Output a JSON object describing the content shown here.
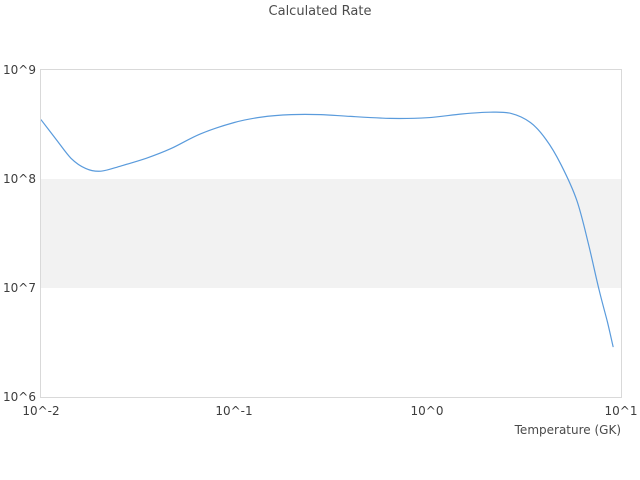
{
  "title": "Calculated Rate",
  "colors": {
    "line": "#5a9bdc",
    "band": "#f2f2f2",
    "plot_border": "#d9d9d9",
    "title_text": "#4c4c4c",
    "tick_text": "#3d3d3d"
  },
  "chart_data": {
    "type": "line",
    "title": "Calculated Rate",
    "xlabel": "Temperature (GK)",
    "ylabel": "",
    "x_scale": "log",
    "y_scale": "log",
    "xlim": [
      0.01,
      10
    ],
    "ylim": [
      1000000,
      1000000000
    ],
    "x_tick_labels": [
      "10^-2",
      "10^-1",
      "10^0",
      "10^1"
    ],
    "y_tick_labels": [
      "10^6",
      "10^7",
      "10^8",
      "10^9"
    ],
    "grid": false,
    "legend": "none",
    "shaded_band_y": [
      10000000,
      100000000
    ],
    "series": [
      {
        "name": "calculated-rate",
        "x": [
          0.01,
          0.012,
          0.0143,
          0.017,
          0.0204,
          0.026,
          0.035,
          0.047,
          0.067,
          0.1,
          0.138,
          0.197,
          0.28,
          0.4,
          0.64,
          1.0,
          1.5,
          2.1,
          2.7,
          3.4,
          4.1,
          4.9,
          5.9,
          6.8,
          7.7,
          8.5,
          9.1
        ],
        "y": [
          350000000.0,
          230000000.0,
          155000000.0,
          125000000.0,
          118000000.0,
          132000000.0,
          155000000.0,
          190000000.0,
          260000000.0,
          330000000.0,
          370000000.0,
          390000000.0,
          390000000.0,
          375000000.0,
          360000000.0,
          365000000.0,
          395000000.0,
          410000000.0,
          400000000.0,
          330000000.0,
          230000000.0,
          135000000.0,
          64000000.0,
          25000000.0,
          9600000.0,
          4900000.0,
          2900000.0
        ]
      }
    ]
  }
}
